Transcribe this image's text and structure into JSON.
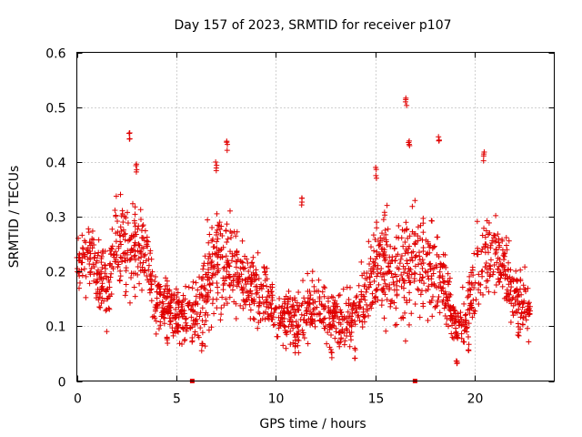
{
  "chart_data": {
    "type": "scatter",
    "title": "Day 157 of 2023, SRMTID for receiver p107",
    "xlabel": "GPS time / hours",
    "ylabel": "SRMTID / TECUs",
    "xlim": [
      0,
      24
    ],
    "ylim": [
      0,
      0.6
    ],
    "xticks": [
      0,
      5,
      10,
      15,
      20
    ],
    "xtick_labels": [
      "0",
      "5",
      "10",
      "15",
      "20"
    ],
    "yticks": [
      0,
      0.1,
      0.2,
      0.3,
      0.4,
      0.5,
      0.6
    ],
    "ytick_labels": [
      "0",
      "0.1",
      "0.2",
      "0.3",
      "0.4",
      "0.5",
      "0.6"
    ],
    "grid": true,
    "marker": "plus",
    "color": "#e00000",
    "gap_markers": [
      5.8,
      17.0
    ],
    "envelope": {
      "x": [
        0.0,
        0.5,
        1.0,
        1.5,
        2.0,
        2.5,
        3.0,
        3.5,
        4.0,
        4.5,
        5.0,
        5.5,
        6.0,
        6.5,
        7.0,
        7.5,
        8.0,
        8.5,
        9.0,
        9.5,
        10.0,
        10.5,
        11.0,
        11.5,
        12.0,
        12.5,
        13.0,
        13.5,
        14.0,
        14.5,
        15.0,
        15.5,
        16.0,
        16.5,
        17.0,
        17.5,
        18.0,
        18.5,
        19.0,
        19.5,
        20.0,
        20.5,
        21.0,
        21.5,
        22.0,
        22.5,
        22.8
      ],
      "center": [
        0.21,
        0.23,
        0.2,
        0.17,
        0.27,
        0.23,
        0.24,
        0.23,
        0.13,
        0.15,
        0.12,
        0.12,
        0.13,
        0.17,
        0.22,
        0.21,
        0.2,
        0.18,
        0.17,
        0.16,
        0.12,
        0.12,
        0.11,
        0.12,
        0.15,
        0.12,
        0.11,
        0.11,
        0.13,
        0.16,
        0.2,
        0.22,
        0.19,
        0.21,
        0.22,
        0.21,
        0.21,
        0.17,
        0.1,
        0.11,
        0.18,
        0.24,
        0.22,
        0.21,
        0.15,
        0.14,
        0.14
      ],
      "spread": [
        0.06,
        0.06,
        0.07,
        0.07,
        0.08,
        0.09,
        0.09,
        0.08,
        0.05,
        0.05,
        0.05,
        0.05,
        0.06,
        0.09,
        0.1,
        0.1,
        0.09,
        0.07,
        0.07,
        0.06,
        0.05,
        0.05,
        0.05,
        0.06,
        0.08,
        0.05,
        0.05,
        0.05,
        0.05,
        0.07,
        0.09,
        0.1,
        0.09,
        0.11,
        0.11,
        0.1,
        0.09,
        0.08,
        0.04,
        0.05,
        0.08,
        0.09,
        0.07,
        0.07,
        0.06,
        0.06,
        0.06
      ]
    },
    "peaks": [
      {
        "x": 2.65,
        "y": 0.46
      },
      {
        "x": 3.0,
        "y": 0.4
      },
      {
        "x": 7.0,
        "y": 0.4
      },
      {
        "x": 7.55,
        "y": 0.44
      },
      {
        "x": 11.3,
        "y": 0.34
      },
      {
        "x": 15.05,
        "y": 0.39
      },
      {
        "x": 16.55,
        "y": 0.52
      },
      {
        "x": 16.7,
        "y": 0.44
      },
      {
        "x": 18.2,
        "y": 0.45
      },
      {
        "x": 20.45,
        "y": 0.42
      }
    ],
    "lows": [
      {
        "x": 4.55,
        "y": 0.06
      },
      {
        "x": 6.3,
        "y": 0.05
      },
      {
        "x": 11.0,
        "y": 0.05
      },
      {
        "x": 12.8,
        "y": 0.04
      },
      {
        "x": 14.0,
        "y": 0.04
      },
      {
        "x": 19.1,
        "y": 0.02
      },
      {
        "x": 19.7,
        "y": 0.05
      },
      {
        "x": 22.2,
        "y": 0.08
      }
    ],
    "n_points": 1900
  }
}
